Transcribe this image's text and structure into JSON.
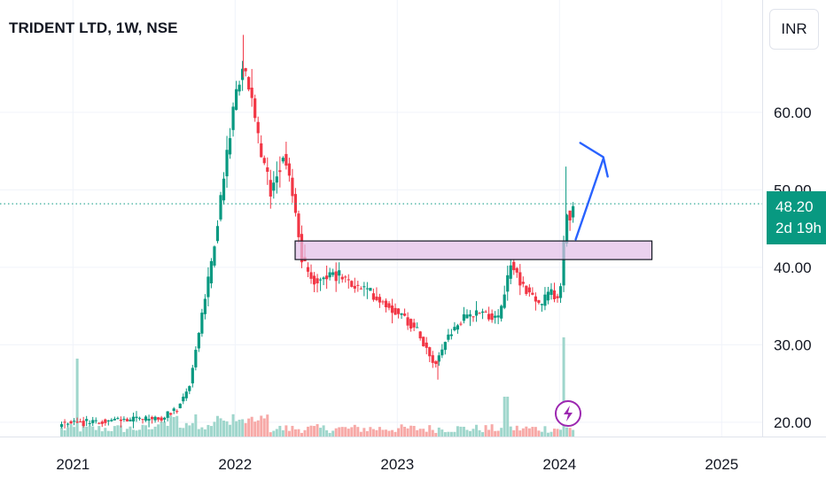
{
  "header": {
    "symbol_title": "TRIDENT LTD, 1W, NSE",
    "currency": "INR"
  },
  "price_badge": {
    "price": "48.20",
    "countdown": "2d 19h"
  },
  "colors": {
    "up": "#089981",
    "down": "#f23645",
    "zone_fill": "#e1bee7",
    "arrow": "#2962ff",
    "last_price_line": "#089981"
  },
  "chart_data": {
    "type": "candlestick",
    "title": "TRIDENT LTD, 1W, NSE",
    "y_ticks": [
      "20.00",
      "30.00",
      "40.00",
      "50.00",
      "60.00"
    ],
    "x_ticks": [
      "2021",
      "2022",
      "2023",
      "2024",
      "2025"
    ],
    "ylim": [
      19.3,
      70.5
    ],
    "last_price": 48.2,
    "grid": true,
    "volume_pane": true,
    "annotations": {
      "zone": {
        "x_from": 2022.37,
        "x_to": 2024.57,
        "y_low": 41.0,
        "y_high": 43.4
      },
      "arrow": {
        "x_from": 2024.1,
        "y_from": 43.6,
        "x_to": 2024.27,
        "y_to": 54.0
      },
      "lightning_icon": "lightning-icon"
    },
    "series": [
      {
        "name": "price",
        "anchors": [
          {
            "x": 2020.93,
            "y": 19.8
          },
          {
            "x": 2021.55,
            "y": 20.6
          },
          {
            "x": 2021.65,
            "y": 22.0
          },
          {
            "x": 2021.72,
            "y": 25.0
          },
          {
            "x": 2021.78,
            "y": 32.0
          },
          {
            "x": 2021.85,
            "y": 40.0
          },
          {
            "x": 2021.92,
            "y": 50.0
          },
          {
            "x": 2021.97,
            "y": 58.0
          },
          {
            "x": 2022.02,
            "y": 64.0
          },
          {
            "x": 2022.05,
            "y": 66.0
          },
          {
            "x": 2022.1,
            "y": 62.0
          },
          {
            "x": 2022.15,
            "y": 55.0
          },
          {
            "x": 2022.22,
            "y": 50.0
          },
          {
            "x": 2022.3,
            "y": 55.0
          },
          {
            "x": 2022.35,
            "y": 50.0
          },
          {
            "x": 2022.42,
            "y": 40.0
          },
          {
            "x": 2022.5,
            "y": 38.0
          },
          {
            "x": 2022.6,
            "y": 39.5
          },
          {
            "x": 2022.7,
            "y": 38.0
          },
          {
            "x": 2022.85,
            "y": 36.5
          },
          {
            "x": 2022.95,
            "y": 35.0
          },
          {
            "x": 2023.05,
            "y": 33.5
          },
          {
            "x": 2023.15,
            "y": 31.0
          },
          {
            "x": 2023.23,
            "y": 27.5
          },
          {
            "x": 2023.32,
            "y": 31.5
          },
          {
            "x": 2023.42,
            "y": 33.5
          },
          {
            "x": 2023.52,
            "y": 34.5
          },
          {
            "x": 2023.62,
            "y": 33.0
          },
          {
            "x": 2023.7,
            "y": 40.5
          },
          {
            "x": 2023.78,
            "y": 37.5
          },
          {
            "x": 2023.88,
            "y": 35.0
          },
          {
            "x": 2023.95,
            "y": 37.0
          },
          {
            "x": 2024.0,
            "y": 35.5
          },
          {
            "x": 2024.03,
            "y": 44.0
          },
          {
            "x": 2024.05,
            "y": 48.0
          },
          {
            "x": 2024.07,
            "y": 46.0
          },
          {
            "x": 2024.09,
            "y": 48.2
          }
        ]
      }
    ],
    "volume": {
      "name": "volume",
      "baseline": "low",
      "spikes": [
        {
          "x": 2021.03,
          "height": "high"
        },
        {
          "x": 2023.67,
          "height": "medium"
        },
        {
          "x": 2024.02,
          "height": "very-high"
        },
        {
          "x": 2021.62,
          "height": "low"
        }
      ]
    }
  }
}
